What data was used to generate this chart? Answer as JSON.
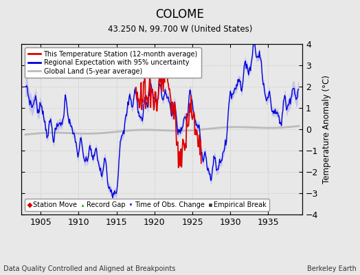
{
  "title": "COLOME",
  "subtitle": "43.250 N, 99.700 W (United States)",
  "xlabel_bottom": "Data Quality Controlled and Aligned at Breakpoints",
  "xlabel_right": "Berkeley Earth",
  "ylabel": "Temperature Anomaly (°C)",
  "xlim": [
    1902.5,
    1939.5
  ],
  "ylim": [
    -4,
    4
  ],
  "yticks": [
    -4,
    -3,
    -2,
    -1,
    0,
    1,
    2,
    3,
    4
  ],
  "xticks": [
    1905,
    1910,
    1915,
    1920,
    1925,
    1930,
    1935
  ],
  "bg_color": "#e8e8e8",
  "plot_bg_color": "#e8e8e8",
  "regional_color": "#0000dd",
  "regional_fill_color": "#aaaaee",
  "station_color": "#dd0000",
  "global_color": "#bbbbbb",
  "marker_items": [
    {
      "label": "Station Move",
      "marker": "D",
      "color": "#dd0000"
    },
    {
      "label": "Record Gap",
      "marker": "^",
      "color": "#00aa00"
    },
    {
      "label": "Time of Obs. Change",
      "marker": "v",
      "color": "#0000dd"
    },
    {
      "label": "Empirical Break",
      "marker": "s",
      "color": "#333333"
    }
  ]
}
